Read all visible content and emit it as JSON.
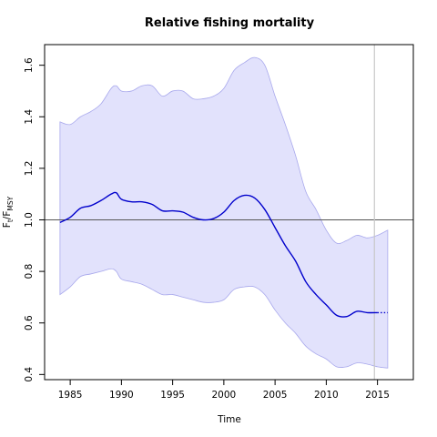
{
  "chart_data": {
    "type": "line",
    "title": "Relative fishing mortality",
    "xlabel": "Time",
    "ylabel": {
      "base": "F",
      "sub1": "t",
      "mid": "/F",
      "sub2": "MSY"
    },
    "xlim": [
      1982.5,
      2018.5
    ],
    "ylim": [
      0.38,
      1.68
    ],
    "xticks": [
      1985,
      1990,
      1995,
      2000,
      2005,
      2010,
      2015
    ],
    "yticks": [
      0.4,
      0.6,
      0.8,
      1.0,
      1.2,
      1.4,
      1.6
    ],
    "reference_line": 1.0,
    "vertical_line": 2014.7,
    "colors": {
      "line": "#0000cc",
      "band_fill": "#e2e2fc",
      "band_edge": "#a8a8ec",
      "refline": "#555555",
      "vline": "#c8c8c8"
    },
    "series": [
      {
        "role": "estimate",
        "x": [
          1984,
          1985,
          1986,
          1987,
          1988,
          1989,
          1989.5,
          1990,
          1991,
          1992,
          1993,
          1994,
          1995,
          1996,
          1997,
          1998,
          1999,
          2000,
          2001,
          2002,
          2003,
          2004,
          2005,
          2006,
          2007,
          2008,
          2009,
          2010,
          2011,
          2012,
          2013,
          2014,
          2015
        ],
        "y": [
          0.99,
          1.01,
          1.045,
          1.055,
          1.075,
          1.1,
          1.105,
          1.08,
          1.07,
          1.07,
          1.06,
          1.035,
          1.035,
          1.03,
          1.01,
          1.0,
          1.005,
          1.03,
          1.075,
          1.095,
          1.085,
          1.04,
          0.97,
          0.9,
          0.84,
          0.76,
          0.71,
          0.67,
          0.63,
          0.625,
          0.645,
          0.64,
          0.64
        ]
      },
      {
        "role": "forecast",
        "x": [
          2015,
          2016
        ],
        "y": [
          0.64,
          0.64
        ]
      },
      {
        "role": "upper",
        "x": [
          1984,
          1985,
          1986,
          1987,
          1988,
          1989,
          1989.5,
          1990,
          1991,
          1992,
          1993,
          1994,
          1995,
          1996,
          1997,
          1998,
          1999,
          2000,
          2001,
          2002,
          2003,
          2004,
          2005,
          2006,
          2007,
          2008,
          2009,
          2010,
          2011,
          2012,
          2013,
          2014,
          2015,
          2016
        ],
        "y": [
          1.38,
          1.37,
          1.4,
          1.42,
          1.45,
          1.51,
          1.52,
          1.5,
          1.5,
          1.52,
          1.52,
          1.48,
          1.5,
          1.5,
          1.47,
          1.47,
          1.48,
          1.51,
          1.58,
          1.61,
          1.63,
          1.6,
          1.48,
          1.37,
          1.25,
          1.11,
          1.04,
          0.96,
          0.91,
          0.92,
          0.94,
          0.93,
          0.94,
          0.96
        ]
      },
      {
        "role": "lower",
        "x": [
          1984,
          1985,
          1986,
          1987,
          1988,
          1989,
          1989.5,
          1990,
          1991,
          1992,
          1993,
          1994,
          1995,
          1996,
          1997,
          1998,
          1999,
          2000,
          2001,
          2002,
          2003,
          2004,
          2005,
          2006,
          2007,
          2008,
          2009,
          2010,
          2011,
          2012,
          2013,
          2014,
          2015,
          2016
        ],
        "y": [
          0.71,
          0.74,
          0.78,
          0.79,
          0.8,
          0.81,
          0.8,
          0.77,
          0.76,
          0.75,
          0.73,
          0.71,
          0.71,
          0.7,
          0.69,
          0.68,
          0.68,
          0.69,
          0.73,
          0.74,
          0.74,
          0.71,
          0.65,
          0.6,
          0.56,
          0.51,
          0.48,
          0.46,
          0.43,
          0.43,
          0.445,
          0.44,
          0.43,
          0.425
        ]
      }
    ]
  }
}
